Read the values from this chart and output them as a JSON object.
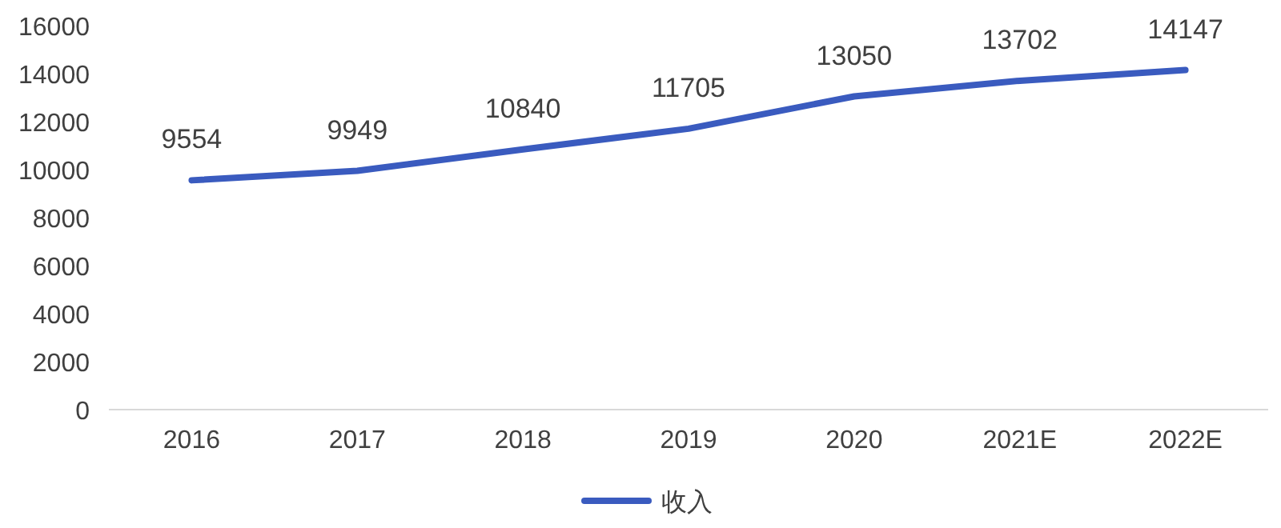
{
  "chart_data": {
    "type": "line",
    "categories": [
      "2016",
      "2017",
      "2018",
      "2019",
      "2020",
      "2021E",
      "2022E"
    ],
    "series": [
      {
        "name": "收入",
        "color": "#3a5bbf",
        "values": [
          9554,
          9949,
          10840,
          11705,
          13050,
          13702,
          14147
        ]
      }
    ],
    "ylim": [
      0,
      16000
    ],
    "yticks": [
      0,
      2000,
      4000,
      6000,
      8000,
      10000,
      12000,
      14000,
      16000
    ],
    "data_labels": true,
    "legend": "bottom",
    "grid": false
  }
}
